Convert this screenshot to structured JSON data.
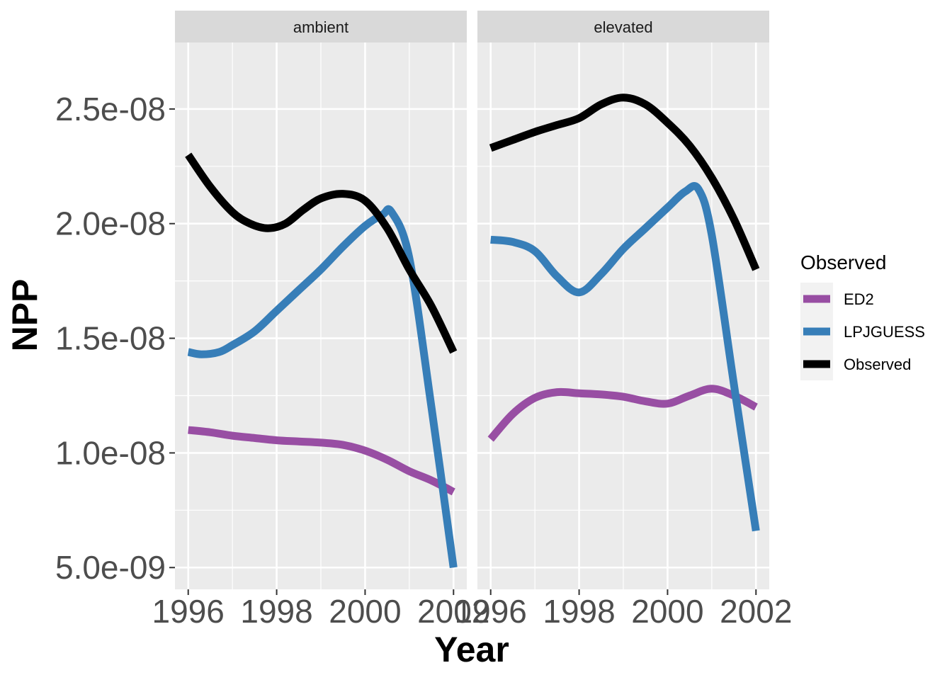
{
  "chart_data": {
    "type": "line",
    "xlabel": "Year",
    "ylabel": "NPP",
    "xlim": [
      1995.7,
      2002.3
    ],
    "ylim": [
      4.05e-09,
      2.79e-08
    ],
    "x_ticks": [
      1996,
      1998,
      2000,
      2002
    ],
    "x_tick_labels": [
      "1996",
      "1998",
      "2000",
      "2002"
    ],
    "y_ticks": [
      5e-09,
      1e-08,
      1.5e-08,
      2e-08,
      2.5e-08
    ],
    "y_tick_labels": [
      "5.0e-09",
      "1.0e-08",
      "1.5e-08",
      "2.0e-08",
      "2.5e-08"
    ],
    "grid": true,
    "legend": {
      "title": "Observed",
      "position": "right",
      "entries": [
        "ED2",
        "LPJGUESS",
        "Observed"
      ]
    },
    "colors": {
      "ED2": "#984ea3",
      "LPJGUESS": "#377eb8",
      "Observed": "#000000"
    },
    "panels": [
      {
        "label": "ambient",
        "series": [
          {
            "name": "ED2",
            "x": [
              1996,
              1996.5,
              1997,
              1997.5,
              1998,
              1998.5,
              1999,
              1999.5,
              2000,
              2000.5,
              2001,
              2001.5,
              2002
            ],
            "y": [
              1.1e-08,
              1.09e-08,
              1.075e-08,
              1.065e-08,
              1.055e-08,
              1.05e-08,
              1.045e-08,
              1.035e-08,
              1.01e-08,
              9.7e-09,
              9.2e-09,
              8.8e-09,
              8.3e-09
            ]
          },
          {
            "name": "LPJGUESS",
            "x": [
              1996,
              1996.3,
              1996.7,
              1997,
              1997.5,
              1998,
              1998.5,
              1999,
              1999.5,
              2000,
              2000.4,
              2000.6,
              2001,
              2001.5,
              2002
            ],
            "y": [
              1.44e-08,
              1.43e-08,
              1.44e-08,
              1.47e-08,
              1.53e-08,
              1.62e-08,
              1.71e-08,
              1.8e-08,
              1.9e-08,
              1.99e-08,
              2.04e-08,
              2.05e-08,
              1.85e-08,
              1.2e-08,
              5e-09
            ]
          },
          {
            "name": "Observed",
            "x": [
              1996,
              1996.5,
              1997,
              1997.4,
              1997.8,
              1998.2,
              1998.6,
              1999,
              1999.5,
              2000,
              2000.5,
              2001,
              2001.5,
              2002
            ],
            "y": [
              2.3e-08,
              2.16e-08,
              2.05e-08,
              2e-08,
              1.98e-08,
              2e-08,
              2.06e-08,
              2.11e-08,
              2.13e-08,
              2.1e-08,
              1.98e-08,
              1.8e-08,
              1.64e-08,
              1.44e-08
            ]
          }
        ]
      },
      {
        "label": "elevated",
        "series": [
          {
            "name": "ED2",
            "x": [
              1996,
              1996.5,
              1997,
              1997.5,
              1998,
              1998.5,
              1999,
              1999.5,
              2000,
              2000.5,
              2001,
              2001.5,
              2002
            ],
            "y": [
              1.06e-08,
              1.17e-08,
              1.24e-08,
              1.265e-08,
              1.26e-08,
              1.255e-08,
              1.245e-08,
              1.225e-08,
              1.215e-08,
              1.25e-08,
              1.28e-08,
              1.25e-08,
              1.2e-08
            ]
          },
          {
            "name": "LPJGUESS",
            "x": [
              1996,
              1996.5,
              1997,
              1997.5,
              1998,
              1998.5,
              1999,
              1999.5,
              2000,
              2000.4,
              2000.7,
              2001,
              2001.5,
              2002
            ],
            "y": [
              1.93e-08,
              1.92e-08,
              1.88e-08,
              1.77e-08,
              1.7e-08,
              1.78e-08,
              1.89e-08,
              1.98e-08,
              2.07e-08,
              2.14e-08,
              2.15e-08,
              1.95e-08,
              1.3e-08,
              6.6e-09
            ]
          },
          {
            "name": "Observed",
            "x": [
              1996,
              1996.5,
              1997,
              1997.5,
              1998,
              1998.5,
              1999,
              1999.5,
              2000,
              2000.5,
              2001,
              2001.5,
              2002
            ],
            "y": [
              2.33e-08,
              2.365e-08,
              2.4e-08,
              2.43e-08,
              2.46e-08,
              2.52e-08,
              2.55e-08,
              2.52e-08,
              2.44e-08,
              2.34e-08,
              2.2e-08,
              2.02e-08,
              1.8e-08
            ]
          }
        ]
      }
    ]
  }
}
